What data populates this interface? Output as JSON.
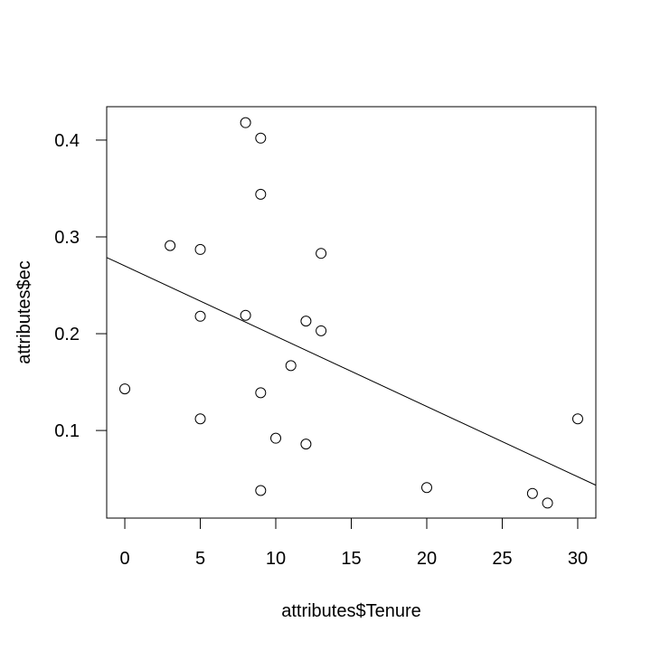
{
  "chart_data": {
    "type": "scatter",
    "title": "",
    "xlabel": "attributes$Tenure",
    "ylabel": "attributes$ec",
    "xlim": [
      -1.2,
      31.2
    ],
    "ylim": [
      0.0095,
      0.4345
    ],
    "x_ticks": [
      0,
      5,
      10,
      15,
      20,
      25,
      30
    ],
    "y_ticks": [
      0.1,
      0.2,
      0.3,
      0.4
    ],
    "x_tick_labels": [
      "0",
      "5",
      "10",
      "15",
      "20",
      "25",
      "30"
    ],
    "y_tick_labels": [
      "0.1",
      "0.2",
      "0.3",
      "0.4"
    ],
    "grid": false,
    "legend": "none",
    "points": [
      {
        "x": 0,
        "y": 0.143
      },
      {
        "x": 3,
        "y": 0.291
      },
      {
        "x": 5,
        "y": 0.287
      },
      {
        "x": 5,
        "y": 0.218
      },
      {
        "x": 5,
        "y": 0.112
      },
      {
        "x": 8,
        "y": 0.418
      },
      {
        "x": 8,
        "y": 0.219
      },
      {
        "x": 9,
        "y": 0.402
      },
      {
        "x": 9,
        "y": 0.344
      },
      {
        "x": 9,
        "y": 0.139
      },
      {
        "x": 9,
        "y": 0.038
      },
      {
        "x": 10,
        "y": 0.092
      },
      {
        "x": 11,
        "y": 0.167
      },
      {
        "x": 12,
        "y": 0.213
      },
      {
        "x": 12,
        "y": 0.086
      },
      {
        "x": 13,
        "y": 0.283
      },
      {
        "x": 13,
        "y": 0.203
      },
      {
        "x": 20,
        "y": 0.041
      },
      {
        "x": 27,
        "y": 0.035
      },
      {
        "x": 28,
        "y": 0.025
      },
      {
        "x": 30,
        "y": 0.112
      }
    ],
    "regression_line": {
      "intercept": 0.27,
      "slope": -0.00726
    },
    "colors": {
      "points": "#000000",
      "line": "#000000",
      "axes": "#000000"
    }
  }
}
